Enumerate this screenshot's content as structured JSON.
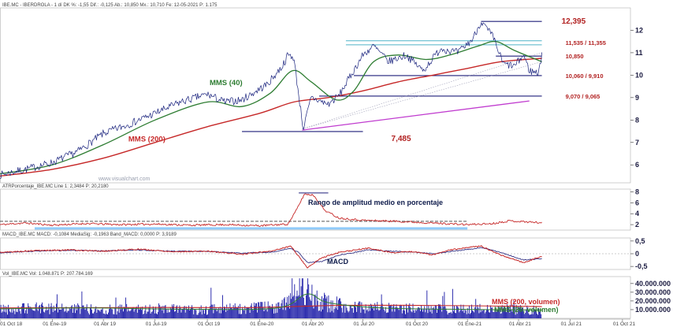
{
  "chart_data": [
    {
      "panel": "price",
      "type": "line",
      "header": "IBE.MC - IBERDROLA - 1 dí DK %: -1,55 Dif.: -0,125 Ab.: 10,850 Mx.: 10,710 Fe: 12-05-2021 P: 1.175",
      "watermark": "www.visualchart.com",
      "ylim": [
        5.2,
        13
      ],
      "yticks": [
        "6",
        "7",
        "8",
        "9",
        "10",
        "11",
        "12"
      ],
      "ytick_values": [
        6,
        7,
        8,
        9,
        10,
        11,
        12
      ],
      "x_start": "2018-10-01",
      "x_end": "2021-05-12",
      "price_points": [
        [
          "2018-10-01",
          5.55
        ],
        [
          "2018-11-15",
          5.8
        ],
        [
          "2019-01-01",
          6.1
        ],
        [
          "2019-02-15",
          6.6
        ],
        [
          "2019-04-01",
          7.4
        ],
        [
          "2019-05-15",
          7.8
        ],
        [
          "2019-07-01",
          8.3
        ],
        [
          "2019-08-15",
          8.8
        ],
        [
          "2019-10-01",
          9.15
        ],
        [
          "2019-11-01",
          8.8
        ],
        [
          "2019-12-01",
          8.9
        ],
        [
          "2020-01-15",
          9.6
        ],
        [
          "2020-02-10",
          10.4
        ],
        [
          "2020-02-20",
          10.9
        ],
        [
          "2020-03-01",
          10.8
        ],
        [
          "2020-03-18",
          7.6
        ],
        [
          "2020-04-01",
          9.0
        ],
        [
          "2020-05-01",
          8.7
        ],
        [
          "2020-05-20",
          9.1
        ],
        [
          "2020-06-10",
          10.0
        ],
        [
          "2020-07-01",
          10.9
        ],
        [
          "2020-07-20",
          11.3
        ],
        [
          "2020-08-15",
          10.6
        ],
        [
          "2020-09-15",
          10.9
        ],
        [
          "2020-10-15",
          10.2
        ],
        [
          "2020-11-15",
          11.2
        ],
        [
          "2020-12-15",
          11.0
        ],
        [
          "2021-01-10",
          11.6
        ],
        [
          "2021-01-25",
          12.395
        ],
        [
          "2021-02-15",
          11.7
        ],
        [
          "2021-03-05",
          10.5
        ],
        [
          "2021-03-25",
          10.4
        ],
        [
          "2021-04-10",
          10.9
        ],
        [
          "2021-04-20",
          10.2
        ],
        [
          "2021-05-05",
          10.1
        ],
        [
          "2021-05-12",
          10.85
        ]
      ],
      "mms40_points": [
        [
          "2018-10-01",
          5.6
        ],
        [
          "2019-01-01",
          6.0
        ],
        [
          "2019-04-01",
          6.9
        ],
        [
          "2019-07-01",
          8.0
        ],
        [
          "2019-10-01",
          8.8
        ],
        [
          "2019-12-01",
          8.6
        ],
        [
          "2020-01-20",
          9.2
        ],
        [
          "2020-02-28",
          10.2
        ],
        [
          "2020-04-01",
          9.7
        ],
        [
          "2020-05-15",
          8.9
        ],
        [
          "2020-06-15",
          9.3
        ],
        [
          "2020-07-20",
          10.6
        ],
        [
          "2020-09-01",
          10.9
        ],
        [
          "2020-10-20",
          10.7
        ],
        [
          "2020-12-01",
          10.9
        ],
        [
          "2021-01-20",
          11.3
        ],
        [
          "2021-02-20",
          11.5
        ],
        [
          "2021-03-25",
          11.1
        ],
        [
          "2021-05-12",
          10.6
        ]
      ],
      "mms200_points": [
        [
          "2018-10-01",
          5.5
        ],
        [
          "2019-01-01",
          5.8
        ],
        [
          "2019-04-01",
          6.3
        ],
        [
          "2019-07-01",
          7.0
        ],
        [
          "2019-10-01",
          7.7
        ],
        [
          "2020-01-01",
          8.3
        ],
        [
          "2020-03-01",
          8.8
        ],
        [
          "2020-05-01",
          9.0
        ],
        [
          "2020-07-01",
          9.3
        ],
        [
          "2020-09-01",
          9.7
        ],
        [
          "2020-11-01",
          10.0
        ],
        [
          "2021-01-01",
          10.3
        ],
        [
          "2021-03-01",
          10.6
        ],
        [
          "2021-05-12",
          10.75
        ]
      ],
      "trendline": [
        [
          "2020-03-16",
          7.55
        ],
        [
          "2021-04-20",
          8.85
        ]
      ],
      "horizontal_levels": [
        {
          "label": "12,395",
          "value": 12.395,
          "from": "2021-01-25",
          "to": "2021-05-12",
          "color": "#1f1f7a",
          "label_color": "#b22222"
        },
        {
          "label": "11,535 / 11,355",
          "value": 11.45,
          "from": "2020-06-01",
          "to": "2021-05-12",
          "color": "#4fb3c8",
          "label_color": "#b22222"
        },
        {
          "label": "10,850",
          "value": 10.85,
          "from": "2021-02-20",
          "to": "2021-05-12",
          "color": "#1f1f7a",
          "label_color": "#b22222"
        },
        {
          "label": "10,060 / 9,910",
          "value": 9.98,
          "from": "2020-06-15",
          "to": "2021-05-12",
          "color": "#1f1f7a",
          "label_color": "#b22222"
        },
        {
          "label": "9,070 / 9,065",
          "value": 9.068,
          "from": "2020-04-15",
          "to": "2021-05-12",
          "color": "#1f1f7a",
          "label_color": "#b22222"
        },
        {
          "label": "7,485",
          "value": 7.485,
          "from": "2019-12-01",
          "to": "2020-07-01",
          "color": "#1f1f7a",
          "label_color": "#b22222"
        }
      ],
      "annotations": [
        {
          "text": "MMS (40)",
          "date": "2019-10-05",
          "value": 9.55,
          "color": "#2e7d32"
        },
        {
          "text": "MMS (200)",
          "date": "2019-05-15",
          "value": 7.05,
          "color": "#c62828"
        }
      ],
      "colors": {
        "price": "#1a237e",
        "mms40": "#2e7d32",
        "mms200": "#c62828",
        "trend": "#c03ccf"
      }
    },
    {
      "panel": "atr",
      "type": "line",
      "header": "ATRPorcentaje_IBE.MC Line 1: 2,3484 P: 20,2180",
      "title_label": "Rango de amplitud medio en porcentaje",
      "ylim": [
        1,
        8.5
      ],
      "yticks": [
        "2",
        "4",
        "6",
        "8"
      ],
      "ytick_values": [
        2,
        4,
        6,
        8
      ],
      "points": [
        [
          "2018-10-01",
          2.0
        ],
        [
          "2018-11-15",
          2.3
        ],
        [
          "2019-01-01",
          1.9
        ],
        [
          "2019-03-01",
          2.2
        ],
        [
          "2019-05-01",
          2.0
        ],
        [
          "2019-07-01",
          2.1
        ],
        [
          "2019-09-01",
          1.9
        ],
        [
          "2019-11-01",
          2.0
        ],
        [
          "2020-01-01",
          1.8
        ],
        [
          "2020-02-20",
          2.1
        ],
        [
          "2020-03-05",
          4.5
        ],
        [
          "2020-03-20",
          7.6
        ],
        [
          "2020-04-05",
          7.4
        ],
        [
          "2020-04-25",
          4.6
        ],
        [
          "2020-05-20",
          3.2
        ],
        [
          "2020-07-01",
          2.8
        ],
        [
          "2020-09-01",
          2.6
        ],
        [
          "2020-11-01",
          2.3
        ],
        [
          "2021-01-01",
          2.0
        ],
        [
          "2021-02-15",
          2.2
        ],
        [
          "2021-03-15",
          2.7
        ],
        [
          "2021-05-12",
          2.35
        ]
      ],
      "levels": [
        {
          "value": 7.8,
          "from": "2020-03-10",
          "to": "2020-05-01",
          "color": "#1f1f7a",
          "dash": false
        },
        {
          "value": 2.6,
          "from": "2018-10-01",
          "to": "2021-01-01",
          "color": "#555555",
          "dash": true
        },
        {
          "value": 1.3,
          "from": "2018-12-01",
          "to": "2021-01-01",
          "color": "#90caf9",
          "dash": false
        }
      ],
      "colors": {
        "line": "#c62828"
      }
    },
    {
      "panel": "macd",
      "type": "line",
      "header": "MACD_IBE.MC MACD: -0,1084 MediaSig: -0,1963 Band_MACD: 0,0000 P: 3,9189",
      "title_label": "MACD",
      "ylim": [
        -0.62,
        0.62
      ],
      "yticks": [
        "0,5",
        "0",
        "-0,5"
      ],
      "ytick_values": [
        0.5,
        0,
        -0.5
      ],
      "macd_points": [
        [
          "2018-10-01",
          0.05
        ],
        [
          "2018-12-01",
          0.12
        ],
        [
          "2019-02-01",
          0.15
        ],
        [
          "2019-04-01",
          0.1
        ],
        [
          "2019-06-01",
          0.18
        ],
        [
          "2019-08-01",
          0.08
        ],
        [
          "2019-10-01",
          0.1
        ],
        [
          "2019-12-01",
          -0.02
        ],
        [
          "2020-01-20",
          0.1
        ],
        [
          "2020-02-25",
          0.3
        ],
        [
          "2020-03-10",
          -0.1
        ],
        [
          "2020-03-25",
          -0.55
        ],
        [
          "2020-04-20",
          -0.15
        ],
        [
          "2020-05-20",
          0.05
        ],
        [
          "2020-07-10",
          0.22
        ],
        [
          "2020-08-20",
          0.05
        ],
        [
          "2020-10-01",
          0.08
        ],
        [
          "2020-11-01",
          -0.05
        ],
        [
          "2020-12-01",
          0.15
        ],
        [
          "2021-01-25",
          0.3
        ],
        [
          "2021-03-01",
          -0.05
        ],
        [
          "2021-04-10",
          -0.35
        ],
        [
          "2021-05-12",
          -0.1
        ]
      ],
      "signal_points": [
        [
          "2018-10-01",
          0.04
        ],
        [
          "2018-12-01",
          0.1
        ],
        [
          "2019-02-01",
          0.13
        ],
        [
          "2019-04-01",
          0.11
        ],
        [
          "2019-06-01",
          0.15
        ],
        [
          "2019-08-01",
          0.1
        ],
        [
          "2019-10-01",
          0.09
        ],
        [
          "2019-12-01",
          0.02
        ],
        [
          "2020-01-20",
          0.06
        ],
        [
          "2020-02-25",
          0.2
        ],
        [
          "2020-03-10",
          0.05
        ],
        [
          "2020-03-25",
          -0.35
        ],
        [
          "2020-04-20",
          -0.3
        ],
        [
          "2020-05-20",
          -0.05
        ],
        [
          "2020-07-10",
          0.15
        ],
        [
          "2020-08-20",
          0.1
        ],
        [
          "2020-10-01",
          0.06
        ],
        [
          "2020-11-01",
          0.0
        ],
        [
          "2020-12-01",
          0.08
        ],
        [
          "2021-01-25",
          0.24
        ],
        [
          "2021-03-01",
          0.05
        ],
        [
          "2021-04-10",
          -0.25
        ],
        [
          "2021-05-12",
          -0.2
        ]
      ],
      "colors": {
        "macd": "#c62828",
        "signal": "#1f1f7a"
      }
    },
    {
      "panel": "volume",
      "type": "bar",
      "header": "Vol_IBE.MC Vol: 1.048.871 P: 207.784.169",
      "ylim": [
        0,
        48000000
      ],
      "yticks": [
        "40.000.000",
        "30.000.000",
        "20.000.000",
        "10.000.000"
      ],
      "ytick_values": [
        40000000,
        30000000,
        20000000,
        10000000
      ],
      "volume_profile": [
        [
          "2018-10-01",
          12000000
        ],
        [
          "2019-01-01",
          13000000
        ],
        [
          "2019-04-01",
          11000000
        ],
        [
          "2019-07-01",
          12000000
        ],
        [
          "2019-10-01",
          11000000
        ],
        [
          "2020-01-01",
          13000000
        ],
        [
          "2020-02-20",
          18000000
        ],
        [
          "2020-03-15",
          42000000
        ],
        [
          "2020-04-15",
          22000000
        ],
        [
          "2020-06-01",
          15000000
        ],
        [
          "2020-09-01",
          12000000
        ],
        [
          "2020-12-01",
          11000000
        ],
        [
          "2021-03-01",
          12000000
        ],
        [
          "2021-05-12",
          10000000
        ]
      ],
      "mms200_volumen": [
        [
          "2018-10-01",
          12000000
        ],
        [
          "2019-07-01",
          12500000
        ],
        [
          "2020-01-01",
          12500000
        ],
        [
          "2020-06-01",
          15000000
        ],
        [
          "2021-01-01",
          14500000
        ],
        [
          "2021-05-12",
          13500000
        ]
      ],
      "mms20_volumen": [
        [
          "2018-10-01",
          11000000
        ],
        [
          "2019-03-01",
          12000000
        ],
        [
          "2019-09-01",
          10500000
        ],
        [
          "2020-02-01",
          12000000
        ],
        [
          "2020-03-25",
          28000000
        ],
        [
          "2020-05-01",
          18000000
        ],
        [
          "2020-08-01",
          12000000
        ],
        [
          "2020-12-01",
          10500000
        ],
        [
          "2021-05-12",
          9500000
        ]
      ],
      "legend": [
        {
          "text": "MMS (200, volumen)",
          "color": "#c62828"
        },
        {
          "text": "MMS (20, volumen)",
          "color": "#2e7d32"
        }
      ],
      "colors": {
        "bars": "#1a1aa6"
      }
    }
  ],
  "x_axis": {
    "x_start": "2018-10-01",
    "x_end": "2021-10-15",
    "tick_dates": [
      "2018-10-01",
      "2019-01-01",
      "2019-04-01",
      "2019-07-01",
      "2019-10-01",
      "2020-01-01",
      "2020-04-01",
      "2020-07-01",
      "2020-10-01",
      "2021-01-01",
      "2021-04-01",
      "2021-07-01",
      "2021-10-01"
    ],
    "tick_labels": [
      "01 Oct 18",
      "01 Ene-19",
      "01 Abr 19",
      "01 Jul-19",
      "01 Oct 19",
      "01 Ene-20",
      "01 Abr 20",
      "01 Jul 20",
      "01 Oct 20",
      "01 Ene-21",
      "01 Abr 21",
      "01 Jul 21",
      "01 Oct 21"
    ]
  }
}
